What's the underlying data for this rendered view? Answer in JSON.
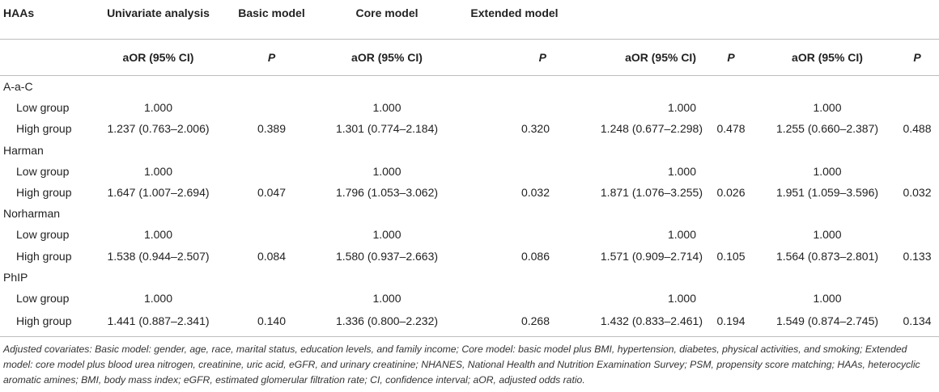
{
  "header": {
    "row1": [
      "HAAs",
      "Univariate analysis",
      "Basic model",
      "Core model",
      "Extended model"
    ],
    "row2": [
      "aOR (95% CI)",
      "P",
      "aOR (95% CI)",
      "P",
      "aOR (95% CI)",
      "P",
      "aOR (95% CI)",
      "P"
    ]
  },
  "groups": [
    {
      "name": "A-a-C",
      "low": {
        "label": "Low group",
        "v": [
          "1.000",
          "",
          "1.000",
          "",
          "1.000",
          "",
          "1.000",
          ""
        ]
      },
      "high": {
        "label": "High group",
        "v": [
          "1.237 (0.763–2.006)",
          "0.389",
          "1.301 (0.774–2.184)",
          "0.320",
          "1.248 (0.677–2.298)",
          "0.478",
          "1.255 (0.660–2.387)",
          "0.488"
        ]
      }
    },
    {
      "name": "Harman",
      "low": {
        "label": "Low group",
        "v": [
          "1.000",
          "",
          "1.000",
          "",
          "1.000",
          "",
          "1.000",
          ""
        ]
      },
      "high": {
        "label": "High group",
        "v": [
          "1.647 (1.007–2.694)",
          "0.047",
          "1.796 (1.053–3.062)",
          "0.032",
          "1.871 (1.076–3.255)",
          "0.026",
          "1.951 (1.059–3.596)",
          "0.032"
        ]
      }
    },
    {
      "name": "Norharman",
      "low": {
        "label": "Low group",
        "v": [
          "1.000",
          "",
          "1.000",
          "",
          "1.000",
          "",
          "1.000",
          ""
        ]
      },
      "high": {
        "label": "High group",
        "v": [
          "1.538 (0.944–2.507)",
          "0.084",
          "1.580 (0.937–2.663)",
          "0.086",
          "1.571 (0.909–2.714)",
          "0.105",
          "1.564 (0.873–2.801)",
          "0.133"
        ]
      }
    },
    {
      "name": "PhIP",
      "low": {
        "label": "Low group",
        "v": [
          "1.000",
          "",
          "1.000",
          "",
          "1.000",
          "",
          "1.000",
          ""
        ]
      },
      "high": {
        "label": "High group",
        "v": [
          "1.441 (0.887–2.341)",
          "0.140",
          "1.336 (0.800–2.232)",
          "0.268",
          "1.432 (0.833–2.461)",
          "0.194",
          "1.549 (0.874–2.745)",
          "0.134"
        ]
      }
    }
  ],
  "footnote": "Adjusted covariates: Basic model: gender, age, race, marital status, education levels, and family income; Core model: basic model plus BMI, hypertension, diabetes, physical activities, and smoking; Extended model: core model plus blood urea nitrogen, creatinine, uric acid, eGFR, and urinary creatinine; NHANES, National Health and Nutrition Examination Survey; PSM, propensity score matching; HAAs, heterocyclic aromatic amines; BMI, body mass index; eGFR, estimated glomerular filtration rate; CI, confidence interval; aOR, adjusted odds ratio."
}
